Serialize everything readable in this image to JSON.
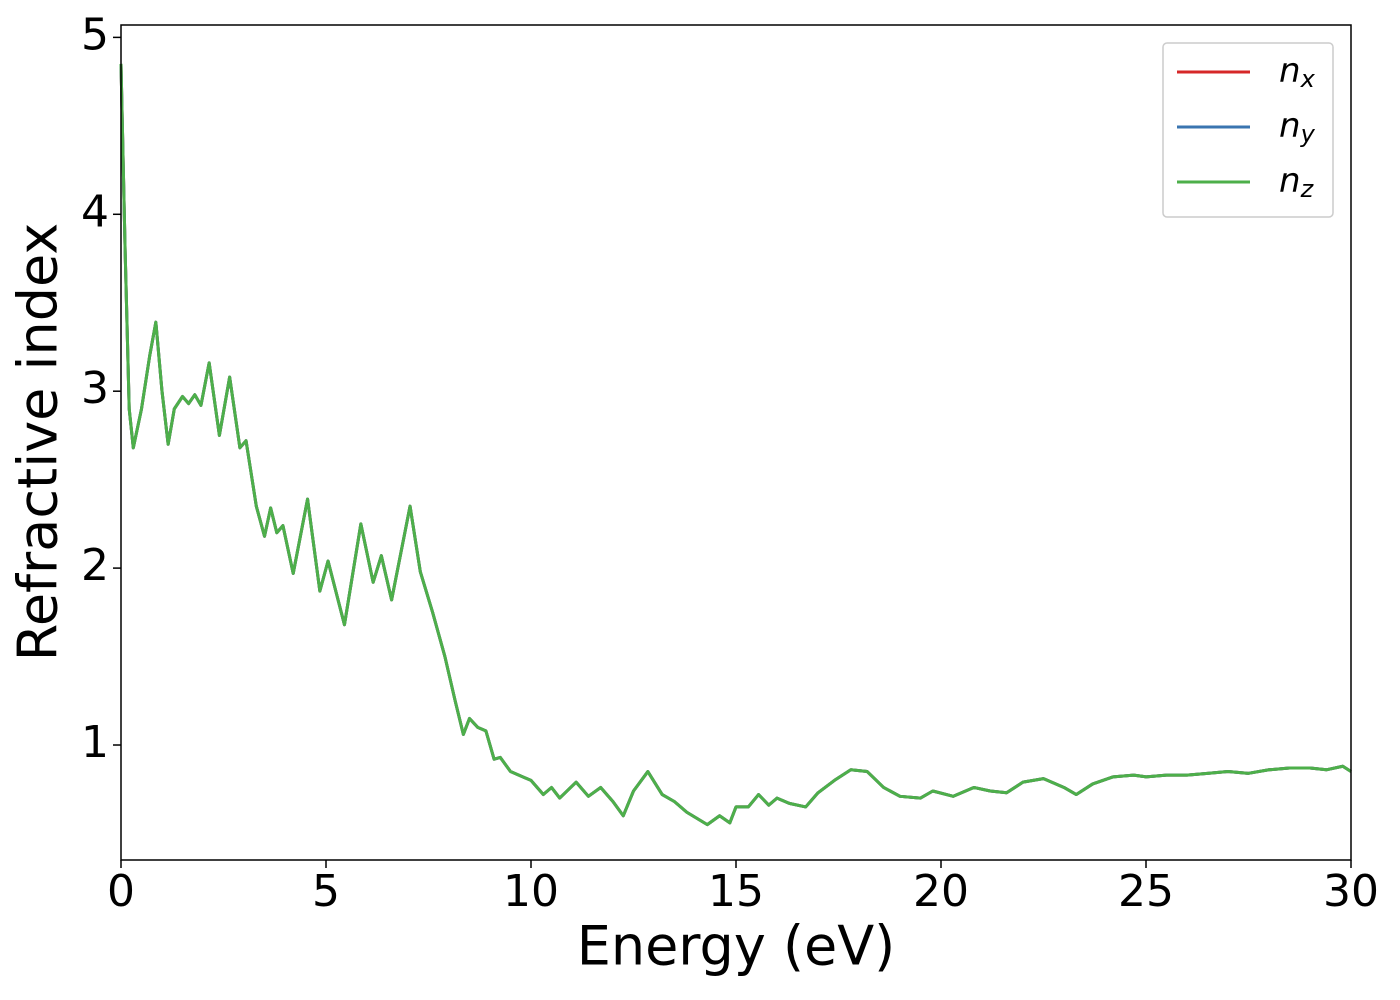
{
  "chart_data": {
    "type": "line",
    "xlabel": "Energy (eV)",
    "ylabel": "Refractive index",
    "x": [
      0,
      0.1,
      0.2,
      0.3,
      0.5,
      0.7,
      0.85,
      1.0,
      1.15,
      1.3,
      1.5,
      1.65,
      1.8,
      1.95,
      2.15,
      2.4,
      2.65,
      2.9,
      3.05,
      3.3,
      3.5,
      3.65,
      3.8,
      3.95,
      4.2,
      4.55,
      4.85,
      5.05,
      5.45,
      5.85,
      6.15,
      6.35,
      6.6,
      7.05,
      7.3,
      7.6,
      7.9,
      8.15,
      8.35,
      8.5,
      8.7,
      8.9,
      9.1,
      9.25,
      9.5,
      9.8,
      10.0,
      10.3,
      10.5,
      10.7,
      11.1,
      11.4,
      11.7,
      12.0,
      12.25,
      12.5,
      12.85,
      13.2,
      13.5,
      13.8,
      14.3,
      14.6,
      14.85,
      15.0,
      15.3,
      15.55,
      15.8,
      16.0,
      16.3,
      16.7,
      17.0,
      17.4,
      17.8,
      18.2,
      18.6,
      19.0,
      19.5,
      19.8,
      20.3,
      20.8,
      21.2,
      21.6,
      22.0,
      22.5,
      23.0,
      23.3,
      23.7,
      24.2,
      24.7,
      25.0,
      25.5,
      26.0,
      26.5,
      27.0,
      27.5,
      28.0,
      28.5,
      29.0,
      29.4,
      29.8,
      30.0
    ],
    "series": [
      {
        "name": "nx",
        "color": "#d62728",
        "values": [
          4.85,
          3.8,
          2.9,
          2.68,
          2.9,
          3.2,
          3.39,
          3.0,
          2.7,
          2.9,
          2.97,
          2.93,
          2.98,
          2.92,
          3.16,
          2.75,
          3.08,
          2.68,
          2.72,
          2.35,
          2.18,
          2.34,
          2.2,
          2.24,
          1.97,
          2.39,
          1.87,
          2.04,
          1.68,
          2.25,
          1.92,
          2.07,
          1.82,
          2.35,
          1.98,
          1.75,
          1.5,
          1.25,
          1.06,
          1.15,
          1.1,
          1.08,
          0.92,
          0.93,
          0.85,
          0.82,
          0.8,
          0.72,
          0.76,
          0.7,
          0.79,
          0.71,
          0.76,
          0.68,
          0.6,
          0.74,
          0.85,
          0.72,
          0.68,
          0.62,
          0.55,
          0.6,
          0.56,
          0.65,
          0.65,
          0.72,
          0.66,
          0.7,
          0.67,
          0.65,
          0.73,
          0.8,
          0.86,
          0.85,
          0.76,
          0.71,
          0.7,
          0.74,
          0.71,
          0.76,
          0.74,
          0.73,
          0.79,
          0.81,
          0.76,
          0.72,
          0.78,
          0.82,
          0.83,
          0.82,
          0.83,
          0.83,
          0.84,
          0.85,
          0.84,
          0.86,
          0.87,
          0.87,
          0.86,
          0.88,
          0.85
        ]
      },
      {
        "name": "ny",
        "color": "#3a75b0",
        "values": [
          4.85,
          3.8,
          2.9,
          2.68,
          2.9,
          3.2,
          3.39,
          3.0,
          2.7,
          2.9,
          2.97,
          2.93,
          2.98,
          2.92,
          3.16,
          2.75,
          3.08,
          2.68,
          2.72,
          2.35,
          2.18,
          2.34,
          2.2,
          2.24,
          1.97,
          2.39,
          1.87,
          2.04,
          1.68,
          2.25,
          1.92,
          2.07,
          1.82,
          2.35,
          1.98,
          1.75,
          1.5,
          1.25,
          1.06,
          1.15,
          1.1,
          1.08,
          0.92,
          0.93,
          0.85,
          0.82,
          0.8,
          0.72,
          0.76,
          0.7,
          0.79,
          0.71,
          0.76,
          0.68,
          0.6,
          0.74,
          0.85,
          0.72,
          0.68,
          0.62,
          0.55,
          0.6,
          0.56,
          0.65,
          0.65,
          0.72,
          0.66,
          0.7,
          0.67,
          0.65,
          0.73,
          0.8,
          0.86,
          0.85,
          0.76,
          0.71,
          0.7,
          0.74,
          0.71,
          0.76,
          0.74,
          0.73,
          0.79,
          0.81,
          0.76,
          0.72,
          0.78,
          0.82,
          0.83,
          0.82,
          0.83,
          0.83,
          0.84,
          0.85,
          0.84,
          0.86,
          0.87,
          0.87,
          0.86,
          0.88,
          0.85
        ]
      },
      {
        "name": "nz",
        "color": "#4daf4a",
        "values": [
          4.85,
          3.8,
          2.9,
          2.68,
          2.9,
          3.2,
          3.39,
          3.0,
          2.7,
          2.9,
          2.97,
          2.93,
          2.98,
          2.92,
          3.16,
          2.75,
          3.08,
          2.68,
          2.72,
          2.35,
          2.18,
          2.34,
          2.2,
          2.24,
          1.97,
          2.39,
          1.87,
          2.04,
          1.68,
          2.25,
          1.92,
          2.07,
          1.82,
          2.35,
          1.98,
          1.75,
          1.5,
          1.25,
          1.06,
          1.15,
          1.1,
          1.08,
          0.92,
          0.93,
          0.85,
          0.82,
          0.8,
          0.72,
          0.76,
          0.7,
          0.79,
          0.71,
          0.76,
          0.68,
          0.6,
          0.74,
          0.85,
          0.72,
          0.68,
          0.62,
          0.55,
          0.6,
          0.56,
          0.65,
          0.65,
          0.72,
          0.66,
          0.7,
          0.67,
          0.65,
          0.73,
          0.8,
          0.86,
          0.85,
          0.76,
          0.71,
          0.7,
          0.74,
          0.71,
          0.76,
          0.74,
          0.73,
          0.79,
          0.81,
          0.76,
          0.72,
          0.78,
          0.82,
          0.83,
          0.82,
          0.83,
          0.83,
          0.84,
          0.85,
          0.84,
          0.86,
          0.87,
          0.87,
          0.86,
          0.88,
          0.85
        ]
      }
    ],
    "xlim": [
      0,
      30
    ],
    "xticks": [
      0,
      5,
      10,
      15,
      20,
      25,
      30
    ],
    "ylim": [
      0.35,
      5.07
    ],
    "yticks": [
      1,
      2,
      3,
      4,
      5
    ],
    "grid": false,
    "legend": "upper right"
  }
}
